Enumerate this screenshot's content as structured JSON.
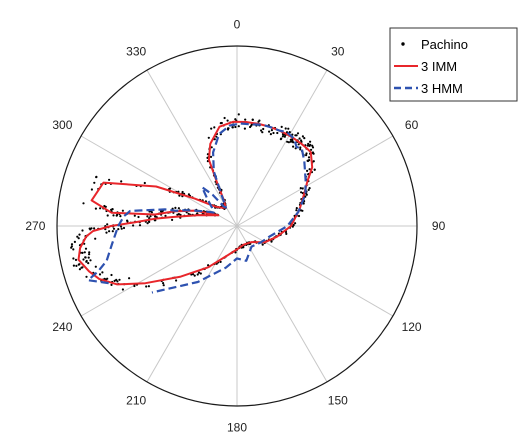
{
  "chart_data": {
    "type": "polar",
    "angular_ticks": [
      "0",
      "30",
      "60",
      "90",
      "120",
      "150",
      "180",
      "210",
      "240",
      "270",
      "300",
      "330"
    ],
    "angular_direction": "clockwise",
    "zero_location": "top",
    "grid": true,
    "legend_placement": "top-right",
    "legend": [
      "Pachino",
      "3 IMM",
      "3 HMM"
    ],
    "series": [
      {
        "name": "3 IMM",
        "color": "#e8262b",
        "style": "solid",
        "theta": [
          300,
          290,
          283,
          278,
          277,
          276,
          280,
          288,
          296,
          303,
          312,
          321,
          328,
          333,
          335,
          337,
          342,
          350,
          358,
          5,
          12,
          18,
          24,
          28,
          33,
          38,
          42,
          45,
          52,
          58,
          65,
          75,
          90,
          105,
          120,
          138,
          160,
          180,
          200,
          215,
          228,
          238,
          244,
          249,
          253,
          258,
          262,
          266,
          268,
          270,
          272,
          275,
          278,
          286,
          300
        ],
        "r": [
          0.12,
          0.25,
          0.36,
          0.46,
          0.56,
          0.7,
          0.82,
          0.78,
          0.5,
          0.28,
          0.16,
          0.13,
          0.12,
          0.16,
          0.25,
          0.4,
          0.48,
          0.56,
          0.58,
          0.58,
          0.58,
          0.58,
          0.58,
          0.58,
          0.58,
          0.58,
          0.58,
          0.58,
          0.53,
          0.46,
          0.41,
          0.36,
          0.3,
          0.23,
          0.18,
          0.12,
          0.11,
          0.13,
          0.18,
          0.28,
          0.42,
          0.6,
          0.74,
          0.82,
          0.86,
          0.9,
          0.88,
          0.84,
          0.8,
          0.7,
          0.57,
          0.46,
          0.36,
          0.22,
          0.12
        ]
      },
      {
        "name": "3 HMM",
        "color": "#2e52b0",
        "style": "dashed",
        "theta": [
          246,
          250,
          252,
          255,
          262,
          270,
          275,
          278,
          279,
          281,
          283,
          284,
          287,
          290,
          295,
          300,
          306,
          312,
          318,
          322,
          326,
          329,
          333,
          337,
          342,
          349,
          356,
          2,
          8,
          14,
          19,
          24,
          28,
          33,
          37,
          40,
          46,
          56,
          65,
          77,
          90,
          108,
          125,
          145,
          165,
          180,
          195,
          215,
          232
        ],
        "r": [
          0.78,
          0.88,
          0.81,
          0.75,
          0.7,
          0.66,
          0.63,
          0.6,
          0.55,
          0.47,
          0.41,
          0.35,
          0.3,
          0.25,
          0.19,
          0.15,
          0.17,
          0.22,
          0.29,
          0.22,
          0.13,
          0.12,
          0.18,
          0.33,
          0.43,
          0.52,
          0.56,
          0.57,
          0.57,
          0.58,
          0.58,
          0.58,
          0.59,
          0.58,
          0.55,
          0.56,
          0.52,
          0.46,
          0.42,
          0.35,
          0.28,
          0.19,
          0.16,
          0.14,
          0.2,
          0.18,
          0.24,
          0.38,
          0.6
        ]
      }
    ],
    "scatter": {
      "name": "Pachino",
      "color": "#000000",
      "count": 520
    }
  }
}
